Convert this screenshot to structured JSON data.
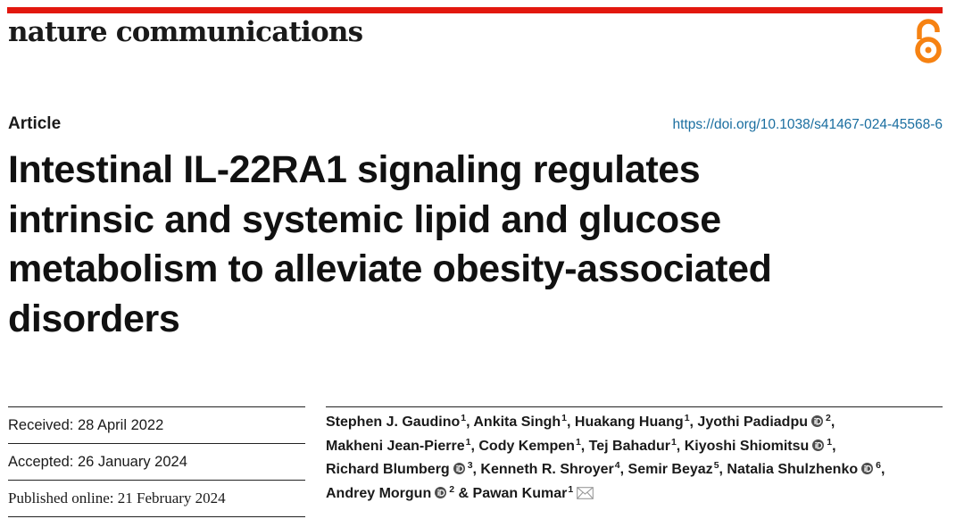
{
  "header": {
    "journal_name": "nature communications",
    "accent_color": "#e2170e",
    "open_access_icon": "open-access-lock-icon",
    "open_access_color": "#f68212"
  },
  "article": {
    "type": "Article",
    "doi": "https://doi.org/10.1038/s41467-024-45568-6",
    "title_lines": [
      "Intestinal IL-22RA1 signaling regulates",
      "intrinsic and systemic lipid and glucose",
      "metabolism to alleviate obesity-associated",
      "disorders"
    ]
  },
  "dates": {
    "received": "Received: 28 April 2022",
    "accepted": "Accepted: 26 January 2024",
    "published": "Published online: 21 February 2024"
  },
  "authors": [
    {
      "name": "Stephen J. Gaudino",
      "aff": "1",
      "orcid": false,
      "sep": ", "
    },
    {
      "name": "Ankita Singh",
      "aff": "1",
      "orcid": false,
      "sep": ", "
    },
    {
      "name": "Huakang Huang",
      "aff": "1",
      "orcid": false,
      "sep": ", "
    },
    {
      "name": "Jyothi Padiadpu",
      "aff": "2",
      "orcid": true,
      "sep": ","
    },
    {
      "name": "Makheni Jean-Pierre",
      "aff": "1",
      "orcid": false,
      "sep": ", "
    },
    {
      "name": "Cody Kempen",
      "aff": "1",
      "orcid": false,
      "sep": ", "
    },
    {
      "name": "Tej Bahadur",
      "aff": "1",
      "orcid": false,
      "sep": ", "
    },
    {
      "name": "Kiyoshi Shiomitsu",
      "aff": "1",
      "orcid": true,
      "sep": ","
    },
    {
      "name": "Richard Blumberg",
      "aff": "3",
      "orcid": true,
      "sep": ", "
    },
    {
      "name": "Kenneth R. Shroyer",
      "aff": "4",
      "orcid": false,
      "sep": ", "
    },
    {
      "name": "Semir Beyaz",
      "aff": "5",
      "orcid": false,
      "sep": ", "
    },
    {
      "name": "Natalia Shulzhenko",
      "aff": "6",
      "orcid": true,
      "sep": ","
    },
    {
      "name": "Andrey Morgun",
      "aff": "2",
      "orcid": true,
      "sep": " & "
    },
    {
      "name": "Pawan Kumar",
      "aff": "1",
      "orcid": false,
      "sep": "",
      "corresponding": true
    }
  ],
  "author_line_breaks": [
    4,
    8,
    12
  ],
  "icons": {
    "orcid": "orcid-icon",
    "corresponding": "envelope-icon"
  }
}
